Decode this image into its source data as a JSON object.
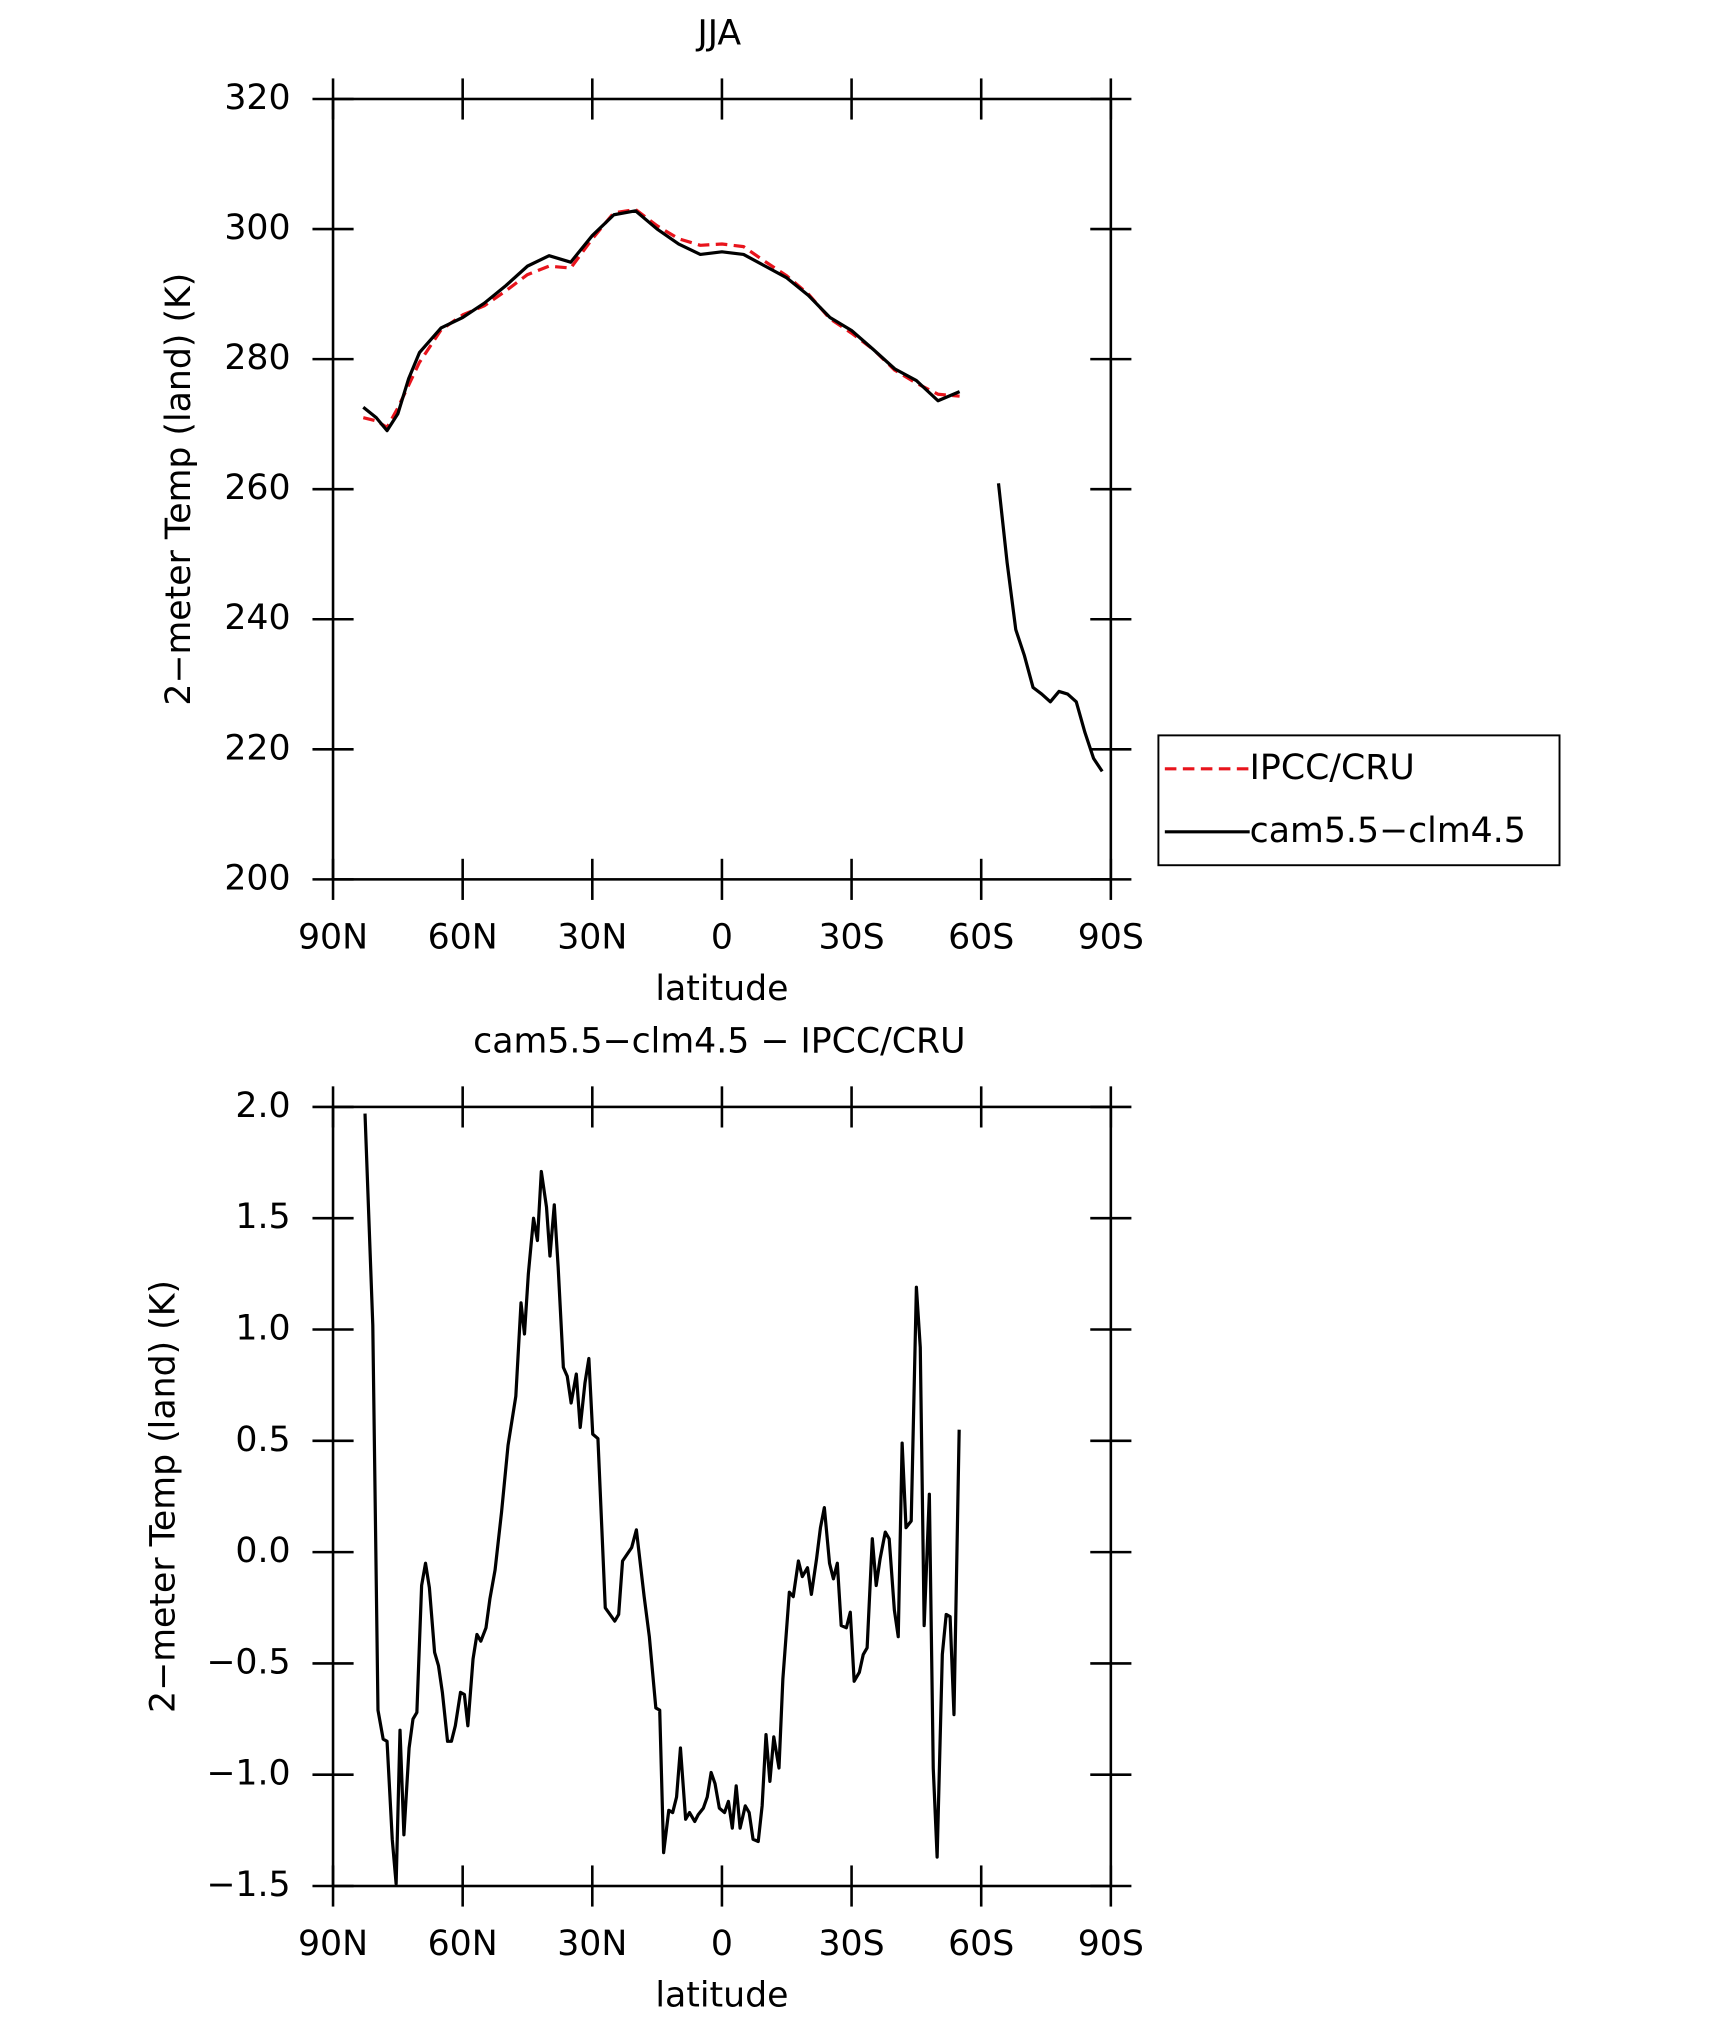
{
  "chart_data": [
    {
      "type": "line",
      "title": "JJA",
      "x_label": "latitude",
      "y_label": "2−meter Temp (land) (K)",
      "xlim": [
        90,
        -90
      ],
      "ylim": [
        200,
        320
      ],
      "xticks": [
        {
          "value": 90,
          "label": "90N"
        },
        {
          "value": 60,
          "label": "60N"
        },
        {
          "value": 30,
          "label": "30N"
        },
        0,
        {
          "value": -30,
          "label": "30S"
        },
        {
          "value": -60,
          "label": "60S"
        },
        {
          "value": -90,
          "label": "90S"
        }
      ],
      "yticks": [
        200,
        220,
        240,
        260,
        280,
        300,
        320
      ],
      "legend": "right",
      "series": [
        {
          "name": "IPCC/CRU",
          "color": "#e8141c",
          "line_style": "dashed",
          "x": [
            83,
            80,
            77.5,
            75,
            72.5,
            70,
            65,
            60,
            55,
            50,
            45,
            40,
            35,
            30,
            25,
            20,
            15,
            10,
            5,
            0,
            -5,
            -10,
            -15,
            -20,
            -25,
            -30,
            -35,
            -40,
            -45,
            -50,
            -55
          ],
          "values": [
            271,
            270.5,
            269.5,
            272.5,
            276,
            279.5,
            284.5,
            286.8,
            288.2,
            290.5,
            293,
            294.3,
            294,
            298.5,
            302.5,
            303,
            300.5,
            298.5,
            297.5,
            297.7,
            297.3,
            295,
            292.8,
            290,
            286.2,
            284,
            281.5,
            278.3,
            276.3,
            274.6,
            274.3
          ]
        },
        {
          "name": "cam5.5−clm4.5",
          "color": "#000000",
          "line_style": "solid",
          "x": [
            83,
            80,
            77.5,
            75,
            72.5,
            70,
            65,
            60,
            55,
            50,
            45,
            40,
            35,
            30,
            25,
            20,
            15,
            10,
            5,
            0,
            -5,
            -10,
            -15,
            -20,
            -25,
            -30,
            -35,
            -40,
            -45,
            -50,
            -55,
            null,
            -64,
            -66,
            -68,
            -70,
            -72,
            -74,
            -76,
            -78,
            -80,
            -82,
            -84,
            -86,
            -88
          ],
          "values": [
            272.6,
            271,
            269,
            271.6,
            277,
            281,
            284.8,
            286.4,
            288.6,
            291.3,
            294.3,
            295.9,
            294.9,
            299,
            302.2,
            302.8,
            300,
            297.7,
            296.1,
            296.5,
            296.1,
            294.3,
            292.5,
            289.8,
            286.4,
            284.4,
            281.5,
            278.5,
            276.7,
            273.6,
            275,
            null,
            260.9,
            248.7,
            238.4,
            234.4,
            229.5,
            228.5,
            227.3,
            228.9,
            228.5,
            227.3,
            222.6,
            218.6,
            216.6
          ]
        }
      ]
    },
    {
      "type": "line",
      "title": "cam5.5−clm4.5 − IPCC/CRU",
      "x_label": "latitude",
      "y_label": "2−meter Temp (land) (K)",
      "xlim": [
        90,
        -90
      ],
      "ylim": [
        -1.5,
        2.0
      ],
      "xticks": [
        {
          "value": 90,
          "label": "90N"
        },
        {
          "value": 60,
          "label": "60N"
        },
        {
          "value": 30,
          "label": "30N"
        },
        0,
        {
          "value": -30,
          "label": "30S"
        },
        {
          "value": -60,
          "label": "60S"
        },
        {
          "value": -90,
          "label": "90S"
        }
      ],
      "yticks": [
        {
          "value": -1.5,
          "label": "−1.5"
        },
        {
          "value": -1.0,
          "label": "−1.0"
        },
        {
          "value": -0.5,
          "label": "−0.5"
        },
        {
          "value": 0,
          "label": "0.0"
        },
        {
          "value": 0.5,
          "label": "0.5"
        },
        {
          "value": 1.0,
          "label": "1.0"
        },
        {
          "value": 1.5,
          "label": "1.5"
        },
        {
          "value": 2.0,
          "label": "2.0"
        }
      ],
      "series": [
        {
          "color": "#000000",
          "line_style": "solid",
          "x": [
            82.6,
            80.8,
            79.6,
            78.4,
            77.5,
            76.3,
            75.4,
            74.5,
            73.6,
            72.4,
            71.5,
            70.6,
            69.5,
            68.6,
            67.7,
            66.5,
            65.6,
            64.7,
            63.5,
            62.6,
            61.7,
            60.5,
            59.6,
            58.8,
            57.6,
            56.7,
            55.8,
            54.6,
            53.7,
            52.5,
            51,
            49.5,
            47.7,
            46.5,
            45.7,
            44.8,
            43.6,
            42.7,
            41.8,
            40.6,
            39.8,
            38.8,
            37.9,
            36.7,
            35.8,
            34.9,
            33.7,
            32.8,
            31.7,
            30.8,
            29.9,
            28.7,
            27,
            24.8,
            23.9,
            23,
            20.9,
            19.8,
            18,
            16.8,
            15.3,
            14.4,
            13.5,
            12.3,
            11.4,
            10.5,
            9.6,
            8.4,
            7.5,
            6.3,
            5.5,
            4.3,
            3.4,
            2.5,
            1.6,
            0.6,
            -0.6,
            -1.5,
            -2.4,
            -3.3,
            -4.2,
            -5.4,
            -6.3,
            -7.2,
            -8.4,
            -9.3,
            -10.2,
            -11.1,
            -12,
            -13.2,
            -14.1,
            -15.6,
            -16.5,
            -17.7,
            -18.6,
            -19.8,
            -20.7,
            -21.9,
            -22.8,
            -23.7,
            -24.9,
            -25.8,
            -26.7,
            -27.6,
            -28.8,
            -29.7,
            -30.6,
            -31.8,
            -32.7,
            -33.6,
            -34.8,
            -35.7,
            -36.6,
            -37.8,
            -38.7,
            -39.9,
            -40.8,
            -41.7,
            -42.6,
            -43.8,
            -45,
            -45.9,
            -46.8,
            -48,
            -48.9,
            -49.8,
            -51,
            -51.9,
            -52.8,
            -53.7,
            -54.9
          ],
          "values": [
            1.97,
            1.02,
            -0.71,
            -0.84,
            -0.85,
            -1.29,
            -1.49,
            -0.8,
            -1.27,
            -0.88,
            -0.75,
            -0.72,
            -0.15,
            -0.05,
            -0.16,
            -0.45,
            -0.51,
            -0.63,
            -0.85,
            -0.85,
            -0.78,
            -0.63,
            -0.64,
            -0.78,
            -0.48,
            -0.37,
            -0.4,
            -0.34,
            -0.21,
            -0.08,
            0.18,
            0.48,
            0.7,
            1.12,
            0.98,
            1.25,
            1.5,
            1.4,
            1.71,
            1.55,
            1.33,
            1.56,
            1.28,
            0.83,
            0.79,
            0.67,
            0.8,
            0.56,
            0.76,
            0.87,
            0.53,
            0.51,
            -0.25,
            -0.31,
            -0.28,
            -0.04,
            0.02,
            0.1,
            -0.2,
            -0.38,
            -0.7,
            -0.71,
            -1.35,
            -1.16,
            -1.17,
            -1.1,
            -0.88,
            -1.2,
            -1.17,
            -1.21,
            -1.18,
            -1.15,
            -1.1,
            -0.99,
            -1.04,
            -1.15,
            -1.17,
            -1.12,
            -1.24,
            -1.05,
            -1.24,
            -1.14,
            -1.17,
            -1.29,
            -1.3,
            -1.14,
            -0.82,
            -1.03,
            -0.83,
            -0.97,
            -0.57,
            -0.18,
            -0.2,
            -0.04,
            -0.11,
            -0.07,
            -0.19,
            -0.03,
            0.11,
            0.2,
            -0.05,
            -0.12,
            -0.05,
            -0.33,
            -0.34,
            -0.27,
            -0.58,
            -0.54,
            -0.46,
            -0.43,
            0.06,
            -0.15,
            -0.03,
            0.09,
            0.06,
            -0.26,
            -0.38,
            0.49,
            0.11,
            0.14,
            1.19,
            0.92,
            -0.33,
            0.26,
            -0.97,
            -1.37,
            -0.46,
            -0.28,
            -0.29,
            -0.73,
            0.55
          ]
        }
      ]
    }
  ]
}
